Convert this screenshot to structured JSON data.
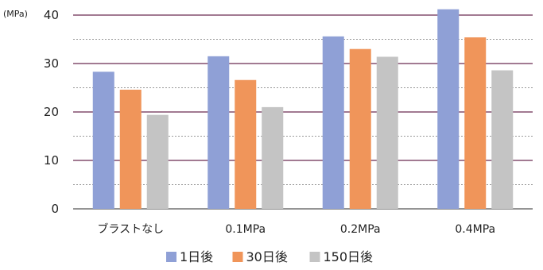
{
  "chart_data": {
    "type": "bar",
    "unit_label": "(MPa)",
    "categories": [
      "ブラストなし",
      "0.1MPa",
      "0.2MPa",
      "0.4MPa"
    ],
    "series": [
      {
        "name": "1日後",
        "color": "#8fa0d6",
        "values": [
          28.3,
          31.5,
          35.6,
          41.2
        ]
      },
      {
        "name": "30日後",
        "color": "#f0955a",
        "values": [
          24.6,
          26.6,
          33.0,
          35.4
        ]
      },
      {
        "name": "150日後",
        "color": "#c4c4c4",
        "values": [
          19.4,
          21.0,
          31.4,
          28.6
        ]
      }
    ],
    "ylim": [
      0,
      40
    ],
    "y_ticks": [
      0,
      10,
      20,
      30,
      40
    ],
    "grid": true,
    "legend_position": "bottom-center",
    "major_gridline_color": "#6a2a52",
    "minor_gridline_color": "#999999"
  }
}
